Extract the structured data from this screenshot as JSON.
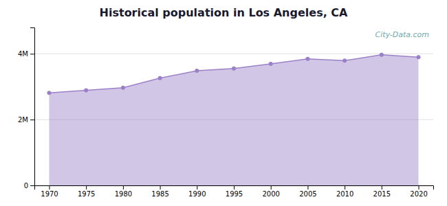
{
  "chart_data": {
    "type": "area",
    "title": "Historical population in Los Angeles, CA",
    "x": [
      1970,
      1975,
      1980,
      1985,
      1990,
      1995,
      2000,
      2005,
      2010,
      2015,
      2020
    ],
    "values": [
      2811801,
      2890000,
      2966763,
      3259340,
      3485398,
      3553638,
      3694820,
      3844829,
      3792621,
      3971883,
      3898747
    ],
    "color": "#9b80c8",
    "marker": "circle",
    "xlim": [
      1968,
      2022
    ],
    "xticks": [
      1970,
      1975,
      1980,
      1985,
      1990,
      1995,
      2000,
      2005,
      2010,
      2015,
      2020
    ],
    "ylim": [
      0,
      4800000
    ],
    "yticks": [
      0,
      {
        "value": 2000000,
        "label": "2M"
      },
      {
        "value": 4000000,
        "label": "4M"
      }
    ],
    "grid": true,
    "annotations": [
      "  City-Data.com"
    ]
  }
}
